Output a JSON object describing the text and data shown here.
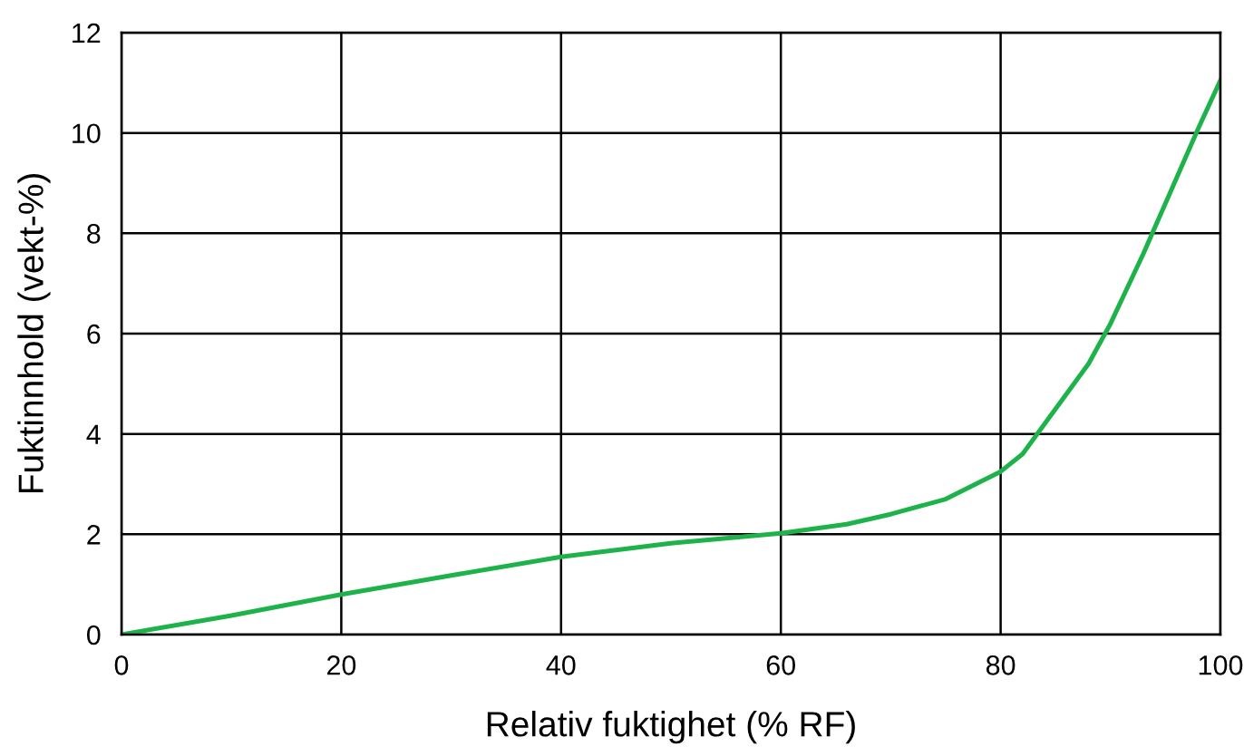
{
  "chart_data": {
    "type": "line",
    "xlabel": "Relativ fuktighet (% RF)",
    "ylabel": "Fuktinnhold (vekt-%)",
    "x": [
      0,
      10,
      20,
      30,
      40,
      50,
      60,
      66,
      70,
      75,
      80,
      82,
      85,
      88,
      90,
      93,
      95,
      98,
      100
    ],
    "series": [
      {
        "color": "#1db34a",
        "values": [
          0,
          0.38,
          0.8,
          1.18,
          1.55,
          1.82,
          2.02,
          2.2,
          2.4,
          2.7,
          3.25,
          3.6,
          4.5,
          5.4,
          6.2,
          7.6,
          8.6,
          10.1,
          11.05
        ]
      }
    ],
    "xlim": [
      0,
      100
    ],
    "ylim": [
      0,
      12
    ],
    "xticks": [
      0,
      20,
      40,
      60,
      80,
      100
    ],
    "yticks": [
      0,
      2,
      4,
      6,
      8,
      10,
      12
    ],
    "grid": true,
    "marker": "none",
    "line_style": "solid",
    "legend": false
  }
}
